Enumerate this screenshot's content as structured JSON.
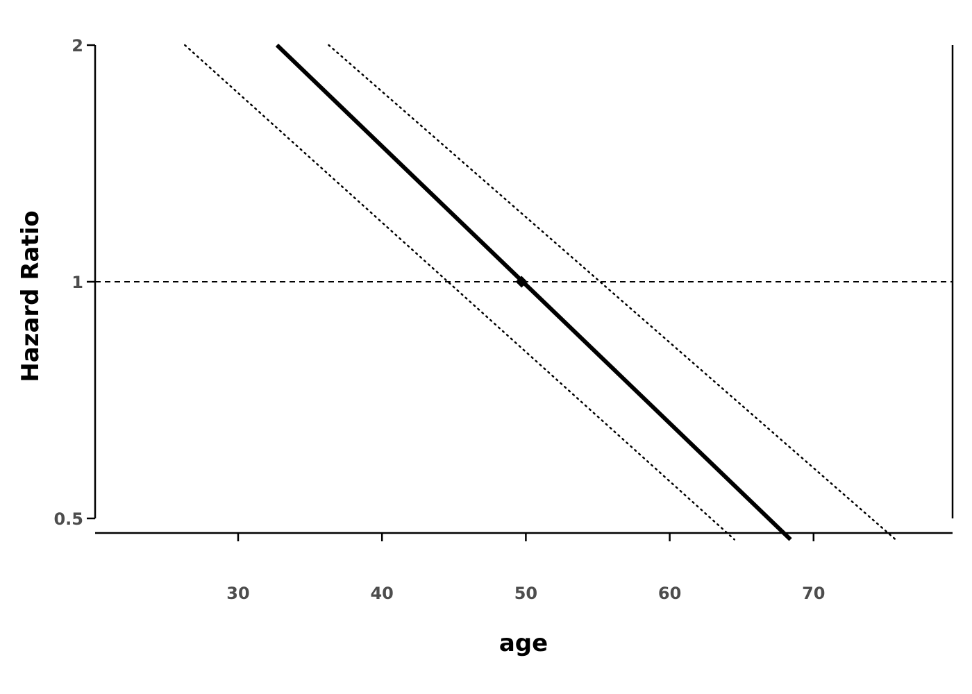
{
  "chart_data": {
    "type": "line",
    "title": "",
    "xlabel": "age",
    "ylabel": "Hazard Ratio",
    "x_ticks": [
      30,
      40,
      50,
      60,
      70
    ],
    "y_ticks": [
      {
        "value": 0.5,
        "label": "0.5"
      },
      {
        "value": 1,
        "label": "1"
      },
      {
        "value": 2,
        "label": "2"
      }
    ],
    "y_scale": "log",
    "xlim": [
      20,
      80
    ],
    "ylim": [
      0.5,
      2
    ],
    "grid": false,
    "legend": "none",
    "reference_line": {
      "y": 1,
      "style": "dashed"
    },
    "reference_point": {
      "x": 49.7,
      "y": 1
    },
    "series": [
      {
        "role": "estimate",
        "style": "solid",
        "x": [
          32.7,
          68.4
        ],
        "y": [
          2.0,
          0.47
        ]
      },
      {
        "role": "lower-bound",
        "style": "dotted",
        "x": [
          26.3,
          64.5
        ],
        "y": [
          2.0,
          0.47
        ]
      },
      {
        "role": "upper-bound",
        "style": "dotted",
        "x": [
          36.3,
          75.7
        ],
        "y": [
          2.0,
          0.47
        ]
      }
    ],
    "colors": {
      "line": "#000000",
      "tick_text": "#4d4d4d"
    }
  }
}
